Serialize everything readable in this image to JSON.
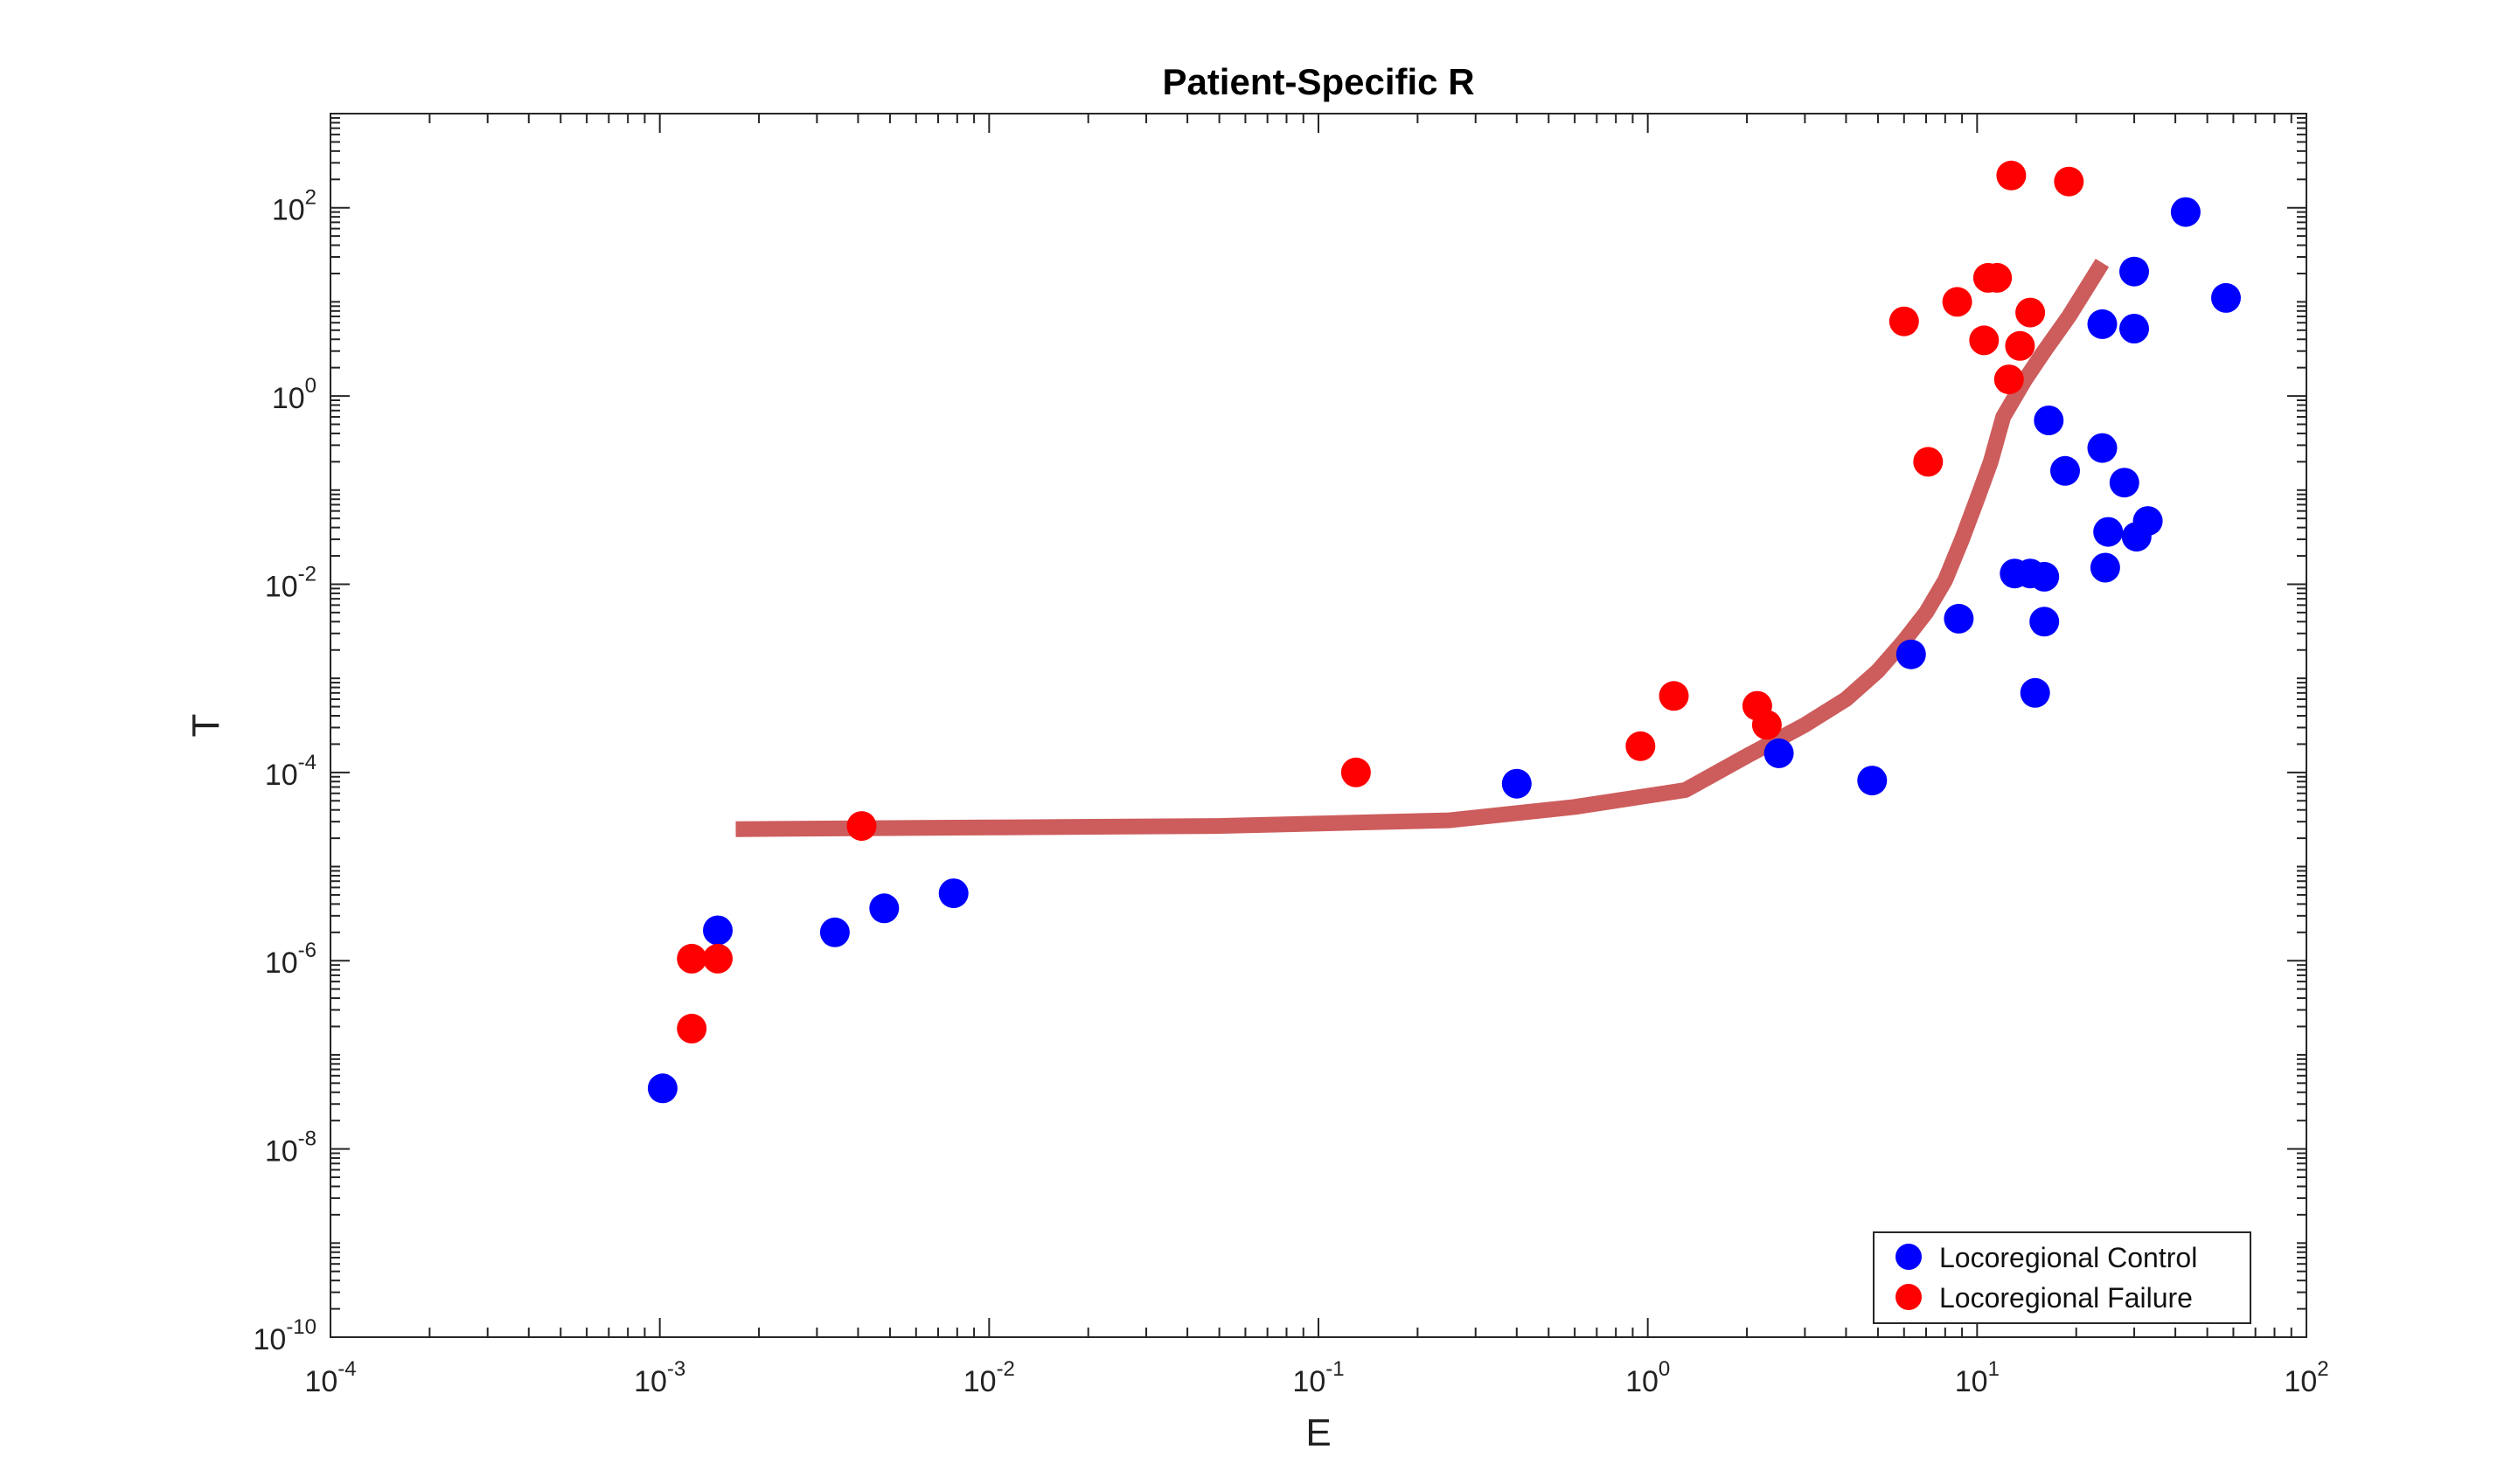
{
  "chart_data": {
    "type": "scatter",
    "title": "Patient-Specific R",
    "xlabel": "E",
    "ylabel": "T",
    "x_scale": "log",
    "y_scale": "log",
    "xlim": [
      0.0001,
      100
    ],
    "ylim": [
      1e-10,
      1000
    ],
    "x_tick_labels": [
      {
        "base": "10",
        "exp": "-4"
      },
      {
        "base": "10",
        "exp": "-3"
      },
      {
        "base": "10",
        "exp": "-2"
      },
      {
        "base": "10",
        "exp": "-1"
      },
      {
        "base": "10",
        "exp": "0"
      },
      {
        "base": "10",
        "exp": "1"
      },
      {
        "base": "10",
        "exp": "2"
      }
    ],
    "y_tick_labels": [
      {
        "base": "10",
        "exp": "-10"
      },
      {
        "base": "10",
        "exp": "-8"
      },
      {
        "base": "10",
        "exp": "-6"
      },
      {
        "base": "10",
        "exp": "-4"
      },
      {
        "base": "10",
        "exp": "-2"
      },
      {
        "base": "10",
        "exp": "0"
      },
      {
        "base": "10",
        "exp": "2"
      }
    ],
    "grid": false,
    "legend_position": "bottom-right",
    "series": [
      {
        "name": "Locoregional Control",
        "color": "#0000ff",
        "points": [
          [
            0.00102,
            4.4e-08
          ],
          [
            0.0015,
            2.1e-06
          ],
          [
            0.0034,
            2e-06
          ],
          [
            0.0048,
            3.6e-06
          ],
          [
            0.0078,
            5.2e-06
          ],
          [
            0.4,
            7.6e-05
          ],
          [
            2.5,
            0.00016
          ],
          [
            4.8,
            8.2e-05
          ],
          [
            6.3,
            0.0018
          ],
          [
            8.8,
            0.0043
          ],
          [
            13.0,
            0.013
          ],
          [
            14.5,
            0.013
          ],
          [
            16.0,
            0.012
          ],
          [
            16.0,
            0.004
          ],
          [
            15.0,
            0.0007
          ],
          [
            16.5,
            0.55
          ],
          [
            18.5,
            0.16
          ],
          [
            24.0,
            0.28
          ],
          [
            24.5,
            0.015
          ],
          [
            25.0,
            0.036
          ],
          [
            28.0,
            0.12
          ],
          [
            30.5,
            0.032
          ],
          [
            33.0,
            0.047
          ],
          [
            24.0,
            5.8
          ],
          [
            30.0,
            5.2
          ],
          [
            30.0,
            21.0
          ],
          [
            43.0,
            90.0
          ],
          [
            57.0,
            11.0
          ]
        ]
      },
      {
        "name": "Locoregional Failure",
        "color": "#ff0000",
        "points": [
          [
            0.00125,
            1.05e-06
          ],
          [
            0.00125,
            1.9e-07
          ],
          [
            0.0015,
            1.05e-06
          ],
          [
            0.0041,
            2.7e-05
          ],
          [
            0.13,
            0.0001
          ],
          [
            0.95,
            0.00019
          ],
          [
            1.2,
            0.00065
          ],
          [
            2.15,
            0.00051
          ],
          [
            2.3,
            0.00032
          ],
          [
            6.0,
            6.2
          ],
          [
            7.1,
            0.2
          ],
          [
            8.7,
            10.0
          ],
          [
            10.5,
            3.9
          ],
          [
            10.8,
            18.0
          ],
          [
            11.5,
            18.0
          ],
          [
            12.5,
            1.5
          ],
          [
            13.5,
            3.4
          ],
          [
            14.5,
            7.7
          ],
          [
            12.7,
            220.0
          ],
          [
            19.0,
            190.0
          ]
        ]
      },
      {
        "name": "",
        "type": "line",
        "color": "#cd5c5c",
        "points": [
          [
            0.0017,
            2.5e-05
          ],
          [
            0.01,
            2.6e-05
          ],
          [
            0.05,
            2.7e-05
          ],
          [
            0.25,
            3.1e-05
          ],
          [
            0.6,
            4.3e-05
          ],
          [
            1.3,
            6.5e-05
          ],
          [
            2.0,
            0.00015
          ],
          [
            3.0,
            0.00032
          ],
          [
            4.0,
            0.0006
          ],
          [
            5.0,
            0.0012
          ],
          [
            6.0,
            0.0025
          ],
          [
            7.0,
            0.005
          ],
          [
            8.0,
            0.011
          ],
          [
            9.0,
            0.03
          ],
          [
            10.0,
            0.08
          ],
          [
            11.0,
            0.2
          ],
          [
            12.0,
            0.6
          ],
          [
            14.0,
            1.5
          ],
          [
            16.0,
            3.0
          ],
          [
            19.0,
            7.0
          ],
          [
            24.0,
            26.0
          ]
        ]
      }
    ]
  }
}
